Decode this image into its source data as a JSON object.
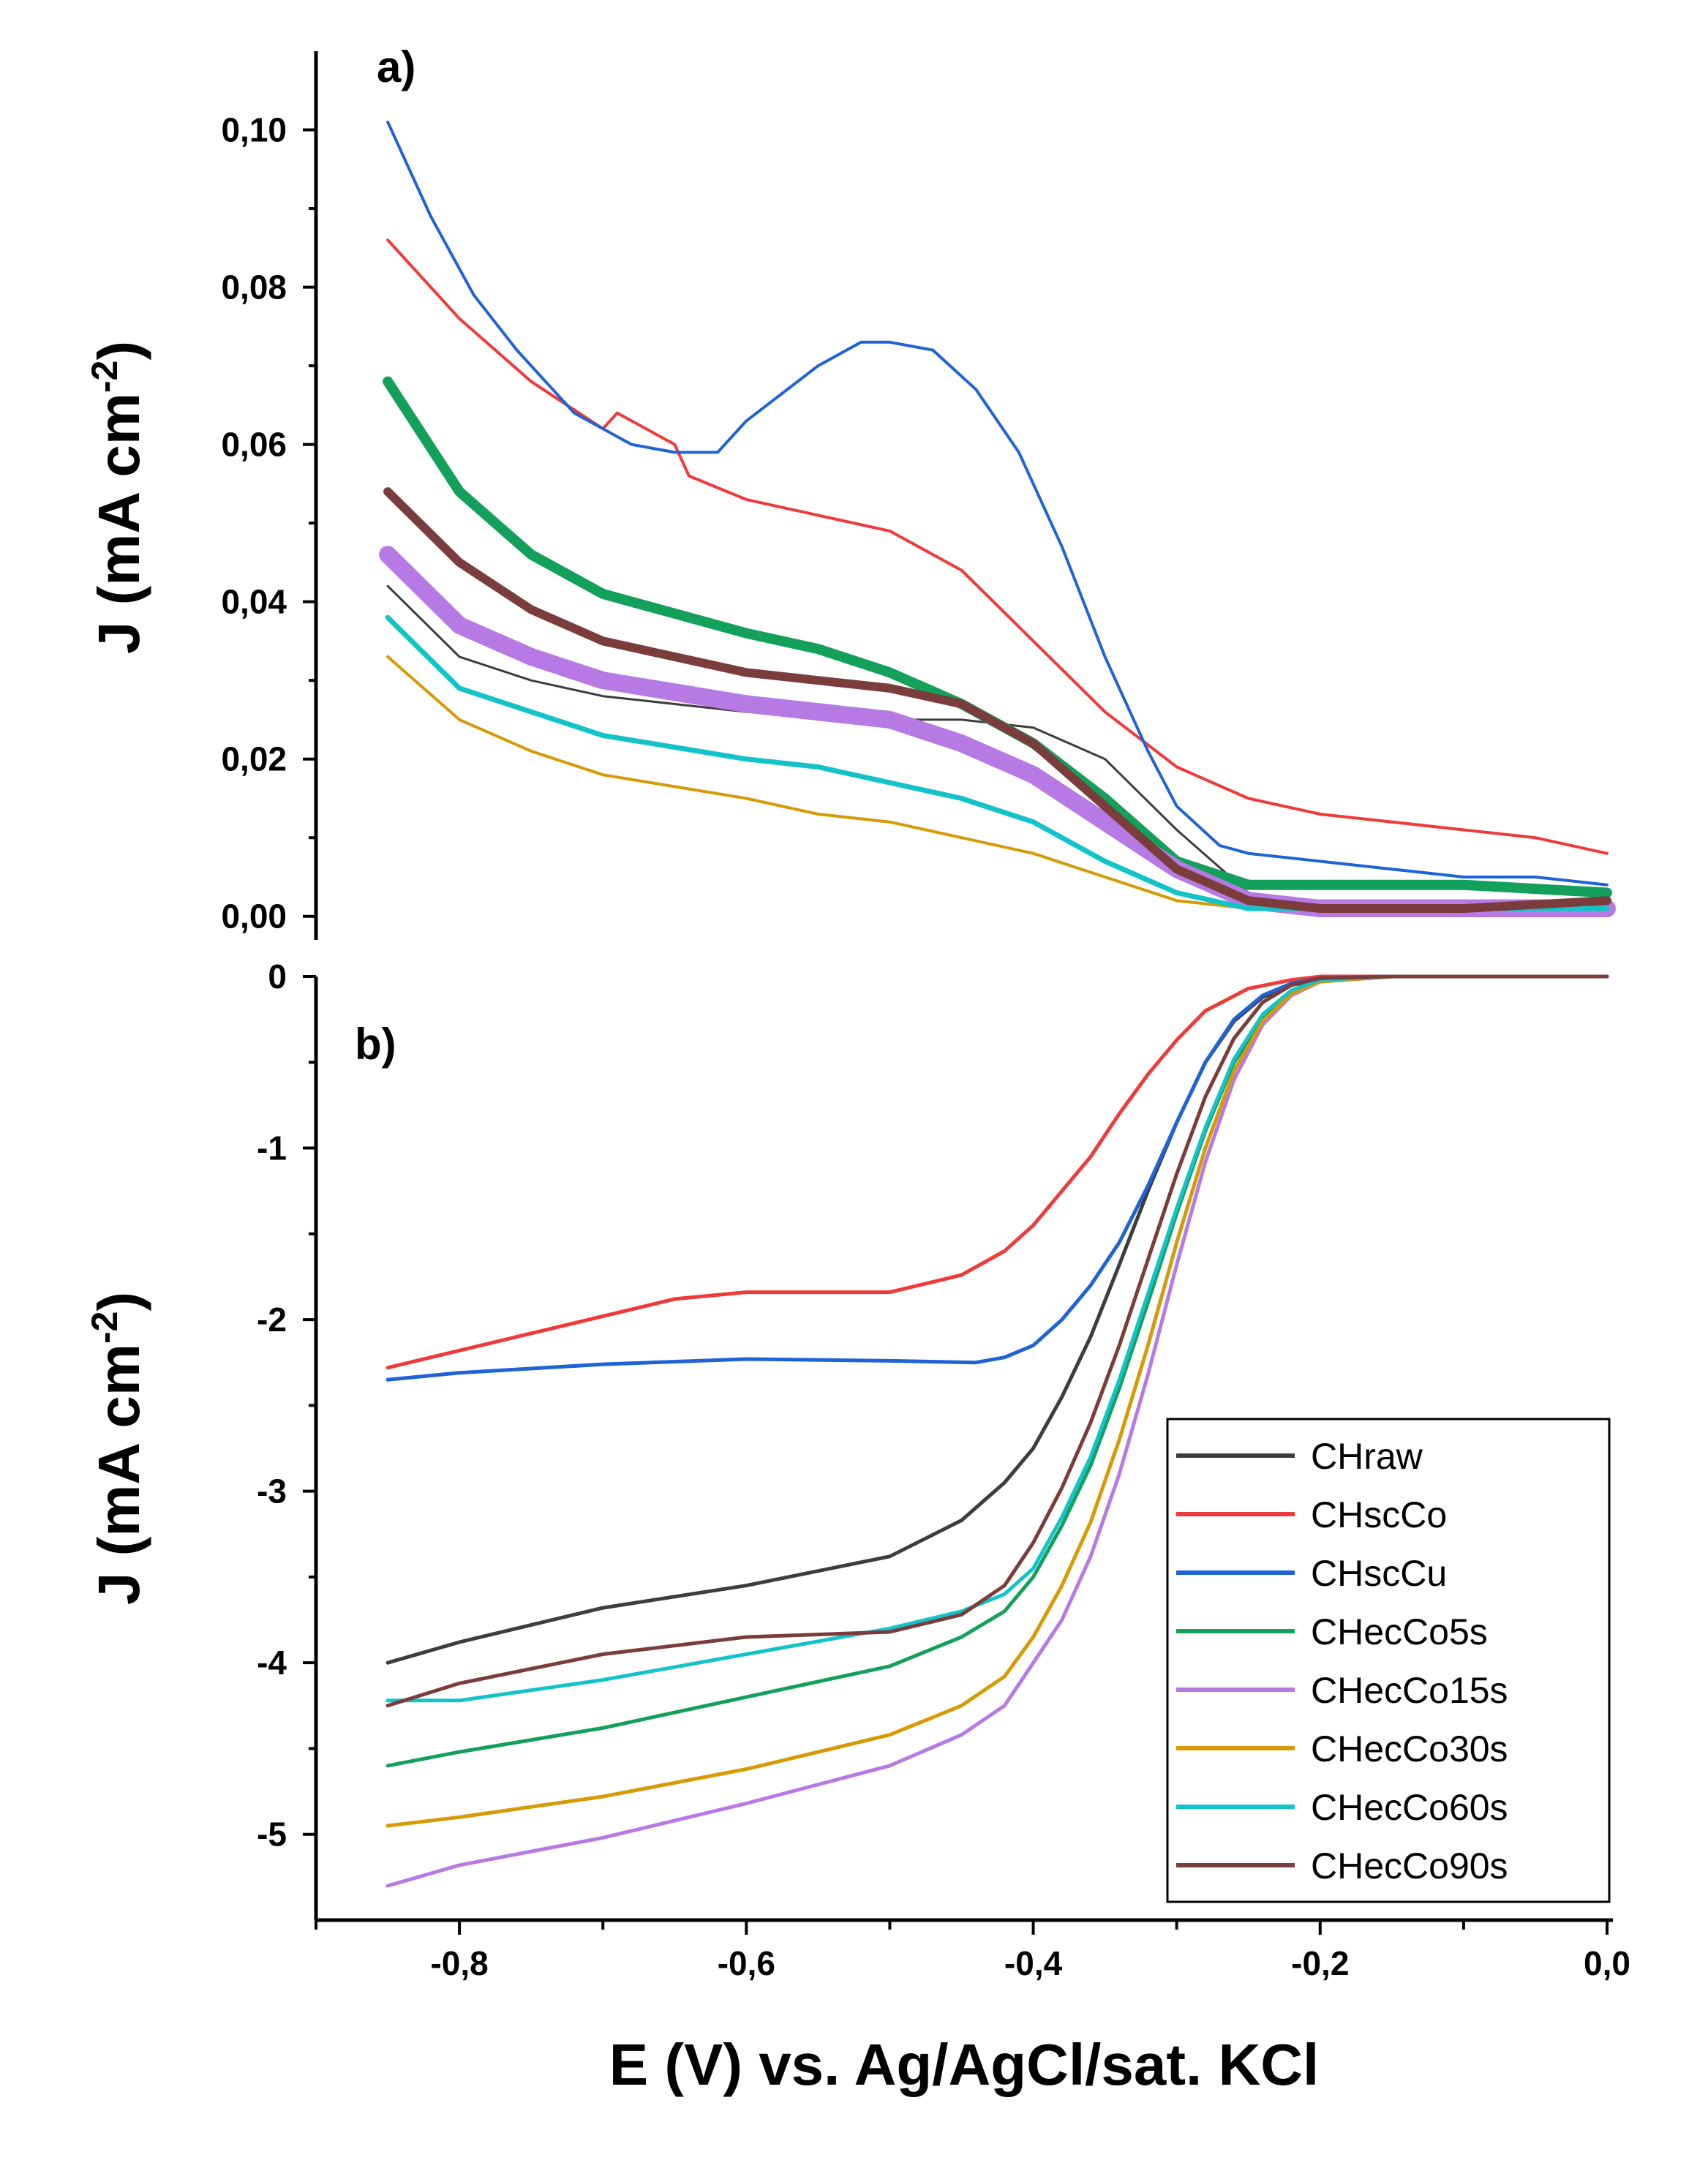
{
  "figure": {
    "xlabel": "E (V) vs. Ag/AgCl/sat. KCl",
    "ylabel_text": "J (mA cm",
    "ylabel_sup": "-2",
    "ylabel_close": ")",
    "x_tick_labels": [
      "-0,8",
      "-0,6",
      "-0,4",
      "-0,2",
      "0,0"
    ]
  },
  "chart_data": [
    {
      "panel": "a)",
      "type": "line",
      "title": "a)",
      "xlabel": "E (V) vs. Ag/AgCl/sat. KCl",
      "ylabel": "J (mA cm-2)",
      "xlim": [
        -0.9,
        0.0
      ],
      "ylim": [
        -0.003,
        0.11
      ],
      "y_tick_values": [
        0.0,
        0.02,
        0.04,
        0.06,
        0.08,
        0.1
      ],
      "y_tick_labels": [
        "0,00",
        "0,02",
        "0,04",
        "0,06",
        "0,08",
        "0,10"
      ],
      "grid": false,
      "series": [
        {
          "name": "CHraw",
          "color": "#3d3d3d",
          "width": 3,
          "x": [
            -0.85,
            -0.8,
            -0.75,
            -0.7,
            -0.6,
            -0.5,
            -0.45,
            -0.4,
            -0.35,
            -0.3,
            -0.25,
            -0.23,
            -0.2,
            -0.15,
            -0.1,
            -0.05,
            0.0
          ],
          "y": [
            0.042,
            0.033,
            0.03,
            0.028,
            0.026,
            0.025,
            0.025,
            0.024,
            0.02,
            0.011,
            0.003,
            0.002,
            0.002,
            0.002,
            0.002,
            0.002,
            0.002
          ]
        },
        {
          "name": "CHscCo",
          "color": "#f03a3a",
          "width": 4,
          "x": [
            -0.85,
            -0.8,
            -0.75,
            -0.7,
            -0.69,
            -0.65,
            -0.64,
            -0.6,
            -0.55,
            -0.5,
            -0.45,
            -0.4,
            -0.35,
            -0.3,
            -0.25,
            -0.2,
            -0.15,
            -0.1,
            -0.05,
            0.0
          ],
          "y": [
            0.086,
            0.076,
            0.068,
            0.062,
            0.064,
            0.06,
            0.056,
            0.053,
            0.051,
            0.049,
            0.044,
            0.035,
            0.026,
            0.019,
            0.015,
            0.013,
            0.012,
            0.011,
            0.01,
            0.008
          ]
        },
        {
          "name": "CHscCu",
          "color": "#1f63d6",
          "width": 4,
          "x": [
            -0.85,
            -0.82,
            -0.79,
            -0.76,
            -0.72,
            -0.68,
            -0.65,
            -0.62,
            -0.6,
            -0.55,
            -0.52,
            -0.5,
            -0.47,
            -0.44,
            -0.41,
            -0.38,
            -0.35,
            -0.32,
            -0.3,
            -0.27,
            -0.25,
            -0.2,
            -0.15,
            -0.1,
            -0.05,
            0.0
          ],
          "y": [
            0.101,
            0.089,
            0.079,
            0.072,
            0.064,
            0.06,
            0.059,
            0.059,
            0.063,
            0.07,
            0.073,
            0.073,
            0.072,
            0.067,
            0.059,
            0.047,
            0.033,
            0.021,
            0.014,
            0.009,
            0.008,
            0.007,
            0.006,
            0.005,
            0.005,
            0.004
          ]
        },
        {
          "name": "CHecCo5s",
          "color": "#13a05a",
          "width": 14,
          "x": [
            -0.85,
            -0.8,
            -0.75,
            -0.7,
            -0.6,
            -0.55,
            -0.5,
            -0.45,
            -0.4,
            -0.35,
            -0.3,
            -0.25,
            -0.2,
            -0.1,
            0.0
          ],
          "y": [
            0.068,
            0.054,
            0.046,
            0.041,
            0.036,
            0.034,
            0.031,
            0.027,
            0.022,
            0.015,
            0.007,
            0.004,
            0.004,
            0.004,
            0.003
          ]
        },
        {
          "name": "CHecCo15s",
          "color": "#b77ae4",
          "width": 24,
          "x": [
            -0.85,
            -0.8,
            -0.75,
            -0.7,
            -0.6,
            -0.55,
            -0.5,
            -0.45,
            -0.4,
            -0.35,
            -0.3,
            -0.25,
            -0.2,
            -0.1,
            0.0
          ],
          "y": [
            0.046,
            0.037,
            0.033,
            0.03,
            0.027,
            0.026,
            0.025,
            0.022,
            0.018,
            0.012,
            0.006,
            0.002,
            0.001,
            0.001,
            0.001
          ]
        },
        {
          "name": "CHecCo30s",
          "color": "#d69a05",
          "width": 4,
          "x": [
            -0.85,
            -0.8,
            -0.75,
            -0.7,
            -0.6,
            -0.55,
            -0.5,
            -0.45,
            -0.4,
            -0.35,
            -0.3,
            -0.25,
            -0.2,
            -0.1,
            0.0
          ],
          "y": [
            0.033,
            0.025,
            0.021,
            0.018,
            0.015,
            0.013,
            0.012,
            0.01,
            0.008,
            0.005,
            0.002,
            0.001,
            0.001,
            0.001,
            0.001
          ]
        },
        {
          "name": "CHecCo60s",
          "color": "#12c4c9",
          "width": 7,
          "x": [
            -0.85,
            -0.8,
            -0.75,
            -0.7,
            -0.6,
            -0.55,
            -0.5,
            -0.45,
            -0.4,
            -0.35,
            -0.3,
            -0.25,
            -0.2,
            -0.1,
            0.0
          ],
          "y": [
            0.038,
            0.029,
            0.026,
            0.023,
            0.02,
            0.019,
            0.017,
            0.015,
            0.012,
            0.007,
            0.003,
            0.001,
            0.001,
            0.001,
            0.001
          ]
        },
        {
          "name": "CHecCo90s",
          "color": "#7b3c3c",
          "width": 12,
          "x": [
            -0.85,
            -0.8,
            -0.75,
            -0.7,
            -0.6,
            -0.55,
            -0.5,
            -0.45,
            -0.4,
            -0.35,
            -0.3,
            -0.25,
            -0.2,
            -0.1,
            0.0
          ],
          "y": [
            0.054,
            0.045,
            0.039,
            0.035,
            0.031,
            0.03,
            0.029,
            0.027,
            0.022,
            0.014,
            0.006,
            0.002,
            0.001,
            0.001,
            0.002
          ]
        }
      ]
    },
    {
      "panel": "b)",
      "type": "line",
      "title": "b)",
      "xlabel": "E (V) vs. Ag/AgCl/sat. KCl",
      "ylabel": "J (mA cm-2)",
      "xlim": [
        -0.9,
        0.0
      ],
      "ylim": [
        -5.5,
        0.0
      ],
      "y_tick_values": [
        0,
        -1,
        -2,
        -3,
        -4,
        -5
      ],
      "y_tick_labels": [
        "0",
        "-1",
        "-2",
        "-3",
        "-4",
        "-5"
      ],
      "grid": false,
      "legend": "bottom-right",
      "series": [
        {
          "name": "CHraw",
          "color": "#3d3d3d",
          "x": [
            -0.85,
            -0.8,
            -0.7,
            -0.6,
            -0.5,
            -0.45,
            -0.42,
            -0.4,
            -0.38,
            -0.36,
            -0.34,
            -0.32,
            -0.3,
            -0.28,
            -0.26,
            -0.24,
            -0.22,
            -0.2,
            -0.15,
            -0.1,
            0.0
          ],
          "y": [
            -4.0,
            -3.88,
            -3.68,
            -3.55,
            -3.38,
            -3.17,
            -2.95,
            -2.75,
            -2.45,
            -2.1,
            -1.68,
            -1.25,
            -0.85,
            -0.5,
            -0.26,
            -0.12,
            -0.05,
            -0.02,
            0.0,
            0.0,
            0.0
          ]
        },
        {
          "name": "CHscCo",
          "color": "#f03a3a",
          "x": [
            -0.85,
            -0.8,
            -0.7,
            -0.65,
            -0.6,
            -0.55,
            -0.5,
            -0.45,
            -0.42,
            -0.4,
            -0.38,
            -0.36,
            -0.34,
            -0.32,
            -0.3,
            -0.28,
            -0.25,
            -0.22,
            -0.2,
            -0.1,
            0.0
          ],
          "y": [
            -2.28,
            -2.18,
            -1.98,
            -1.88,
            -1.84,
            -1.84,
            -1.84,
            -1.74,
            -1.6,
            -1.45,
            -1.25,
            -1.05,
            -0.8,
            -0.57,
            -0.37,
            -0.2,
            -0.07,
            -0.02,
            0.0,
            0.0,
            0.0
          ]
        },
        {
          "name": "CHscCu",
          "color": "#1f63d6",
          "x": [
            -0.85,
            -0.8,
            -0.7,
            -0.6,
            -0.5,
            -0.44,
            -0.42,
            -0.4,
            -0.38,
            -0.36,
            -0.34,
            -0.32,
            -0.3,
            -0.28,
            -0.26,
            -0.24,
            -0.22,
            -0.2,
            -0.15,
            -0.1,
            0.0
          ],
          "y": [
            -2.35,
            -2.31,
            -2.26,
            -2.23,
            -2.24,
            -2.25,
            -2.22,
            -2.15,
            -2.0,
            -1.8,
            -1.55,
            -1.22,
            -0.85,
            -0.5,
            -0.25,
            -0.11,
            -0.04,
            -0.01,
            0.0,
            0.0,
            0.0
          ]
        },
        {
          "name": "CHecCo5s",
          "color": "#13a05a",
          "x": [
            -0.85,
            -0.8,
            -0.7,
            -0.6,
            -0.5,
            -0.45,
            -0.42,
            -0.4,
            -0.38,
            -0.36,
            -0.34,
            -0.32,
            -0.3,
            -0.28,
            -0.26,
            -0.24,
            -0.22,
            -0.2,
            -0.15,
            -0.1,
            0.0
          ],
          "y": [
            -4.6,
            -4.52,
            -4.38,
            -4.2,
            -4.02,
            -3.85,
            -3.7,
            -3.5,
            -3.2,
            -2.85,
            -2.4,
            -1.9,
            -1.38,
            -0.9,
            -0.5,
            -0.25,
            -0.1,
            -0.03,
            0.0,
            0.0,
            0.0
          ]
        },
        {
          "name": "CHecCo15s",
          "color": "#b77ae4",
          "x": [
            -0.85,
            -0.8,
            -0.7,
            -0.6,
            -0.5,
            -0.45,
            -0.42,
            -0.4,
            -0.38,
            -0.36,
            -0.34,
            -0.32,
            -0.3,
            -0.28,
            -0.26,
            -0.24,
            -0.22,
            -0.2,
            -0.15,
            -0.1,
            0.0
          ],
          "y": [
            -5.3,
            -5.18,
            -5.02,
            -4.82,
            -4.6,
            -4.42,
            -4.25,
            -4.0,
            -3.75,
            -3.38,
            -2.9,
            -2.32,
            -1.68,
            -1.08,
            -0.6,
            -0.28,
            -0.11,
            -0.03,
            0.0,
            0.0,
            0.0
          ]
        },
        {
          "name": "CHecCo30s",
          "color": "#d69a05",
          "x": [
            -0.85,
            -0.8,
            -0.7,
            -0.6,
            -0.5,
            -0.45,
            -0.42,
            -0.4,
            -0.38,
            -0.36,
            -0.34,
            -0.32,
            -0.3,
            -0.28,
            -0.26,
            -0.24,
            -0.22,
            -0.2,
            -0.15,
            -0.1,
            0.0
          ],
          "y": [
            -4.95,
            -4.9,
            -4.78,
            -4.62,
            -4.42,
            -4.25,
            -4.08,
            -3.85,
            -3.55,
            -3.18,
            -2.7,
            -2.15,
            -1.55,
            -1.0,
            -0.55,
            -0.26,
            -0.1,
            -0.03,
            0.0,
            0.0,
            0.0
          ]
        },
        {
          "name": "CHecCo60s",
          "color": "#12c4c9",
          "x": [
            -0.85,
            -0.8,
            -0.7,
            -0.6,
            -0.5,
            -0.45,
            -0.42,
            -0.4,
            -0.38,
            -0.36,
            -0.34,
            -0.32,
            -0.3,
            -0.28,
            -0.26,
            -0.24,
            -0.22,
            -0.2,
            -0.15,
            -0.1,
            0.0
          ],
          "y": [
            -4.22,
            -4.22,
            -4.1,
            -3.95,
            -3.8,
            -3.7,
            -3.6,
            -3.45,
            -3.15,
            -2.8,
            -2.35,
            -1.85,
            -1.35,
            -0.88,
            -0.48,
            -0.22,
            -0.08,
            -0.02,
            0.0,
            0.0,
            0.0
          ]
        },
        {
          "name": "CHecCo90s",
          "color": "#7b3c3c",
          "x": [
            -0.85,
            -0.8,
            -0.7,
            -0.6,
            -0.5,
            -0.45,
            -0.42,
            -0.4,
            -0.38,
            -0.36,
            -0.34,
            -0.32,
            -0.3,
            -0.28,
            -0.26,
            -0.24,
            -0.22,
            -0.2,
            -0.15,
            -0.1,
            0.0
          ],
          "y": [
            -4.25,
            -4.12,
            -3.95,
            -3.85,
            -3.82,
            -3.72,
            -3.55,
            -3.3,
            -2.98,
            -2.6,
            -2.15,
            -1.65,
            -1.15,
            -0.7,
            -0.36,
            -0.15,
            -0.05,
            -0.01,
            0.0,
            0.0,
            0.0
          ]
        }
      ]
    }
  ]
}
